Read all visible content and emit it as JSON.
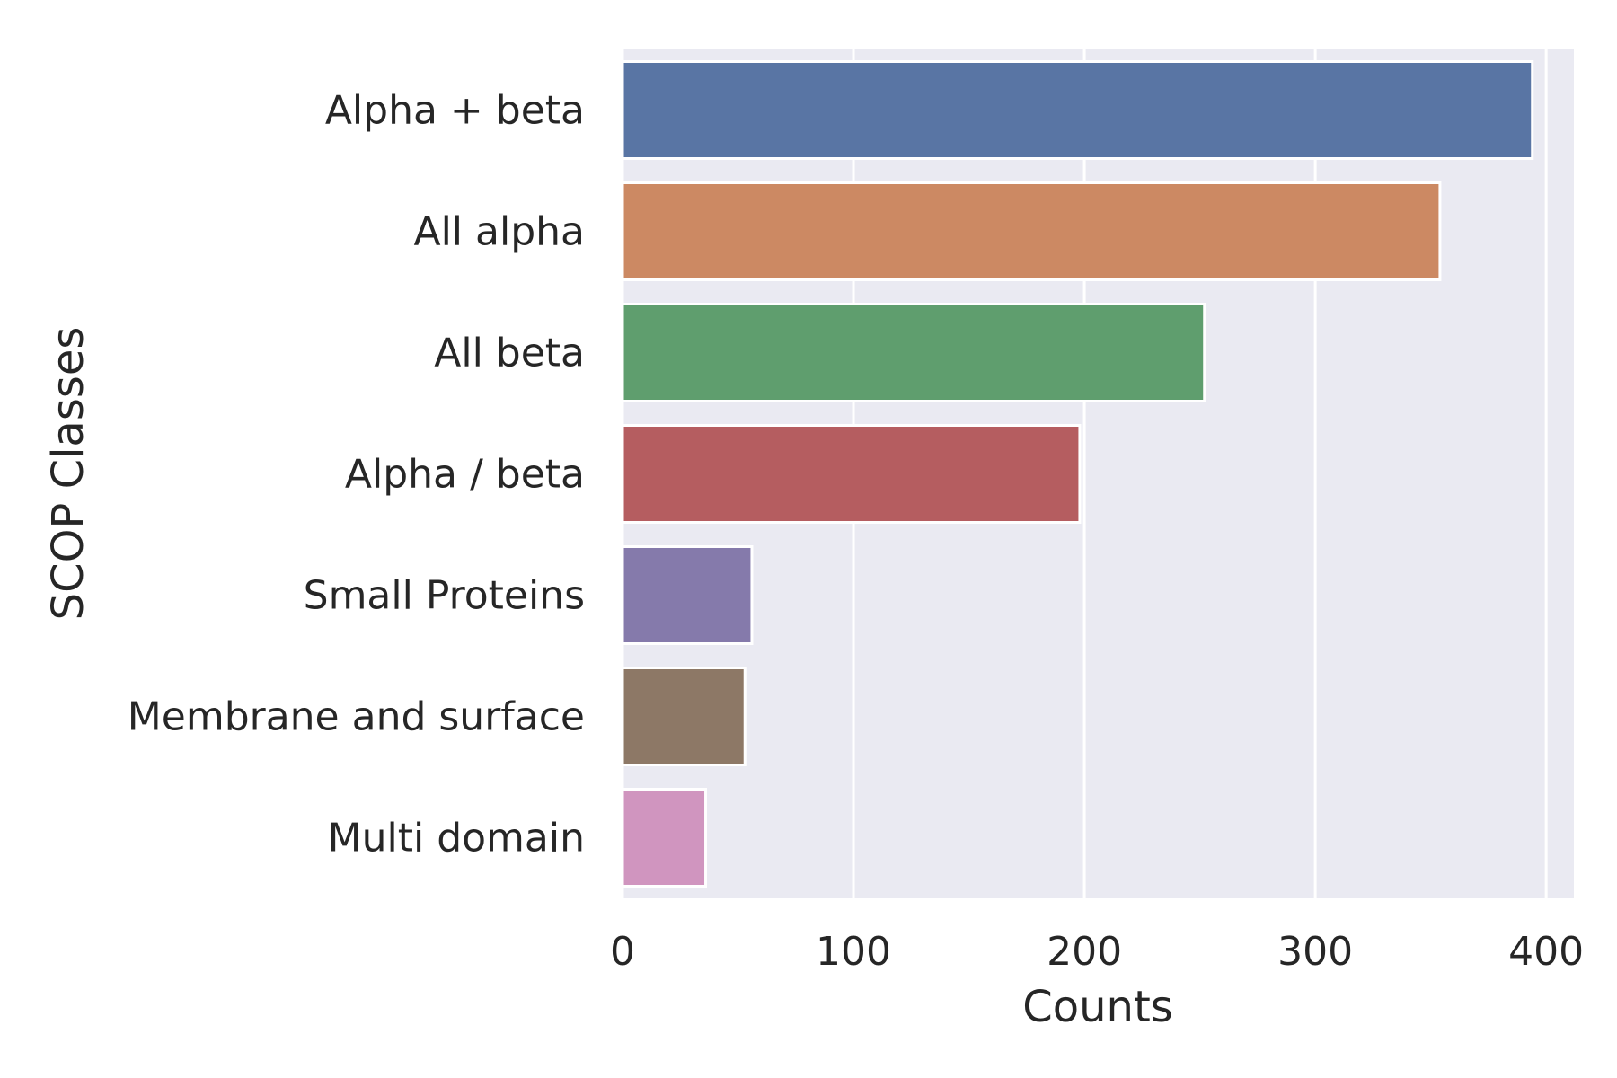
{
  "chart_data": {
    "type": "bar",
    "orientation": "horizontal",
    "title": "",
    "xlabel": "Counts",
    "ylabel": "SCOP Classes",
    "categories": [
      "Alpha + beta",
      "All alpha",
      "All beta",
      "Alpha / beta",
      "Small Proteins",
      "Membrane and surface",
      "Multi domain"
    ],
    "values": [
      394,
      354,
      252,
      198,
      56,
      53,
      36
    ],
    "colors": [
      "#5975a4",
      "#cc8963",
      "#5f9e6e",
      "#b55d60",
      "#857aab",
      "#8d7866",
      "#d095bf"
    ],
    "xlim": [
      0,
      412
    ],
    "xticks": [
      0,
      100,
      200,
      300,
      400
    ],
    "grid": true,
    "background": "#eaeaf2"
  }
}
